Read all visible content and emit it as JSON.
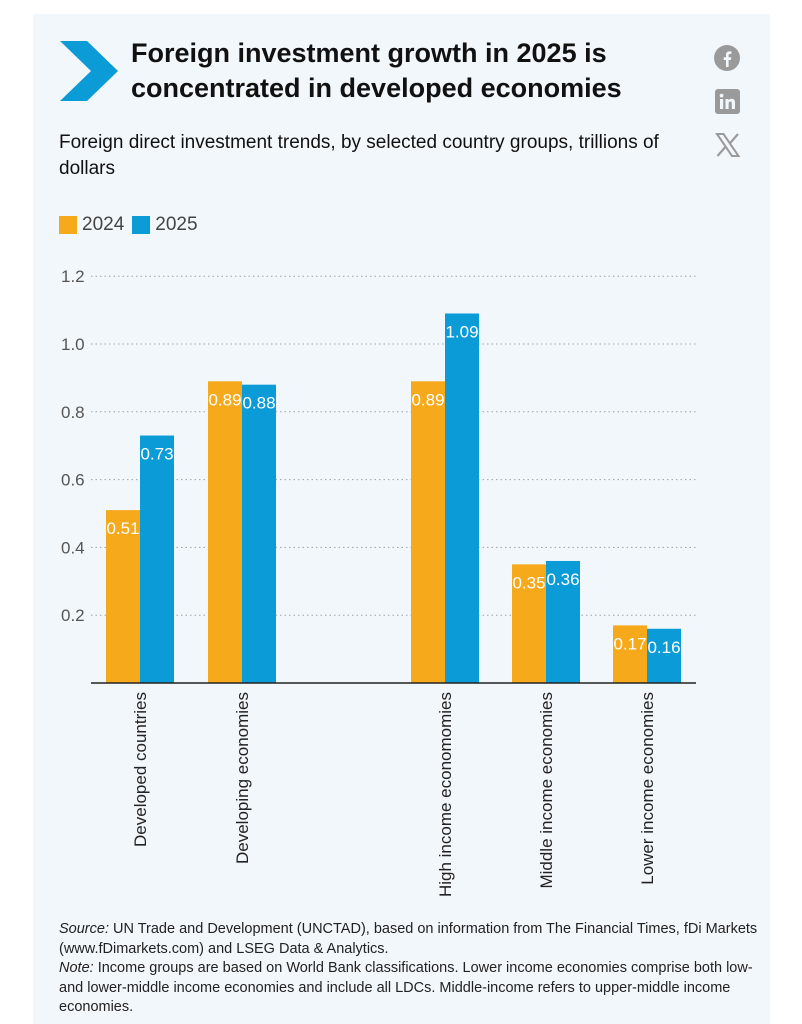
{
  "header": {
    "title": "Foreign investment growth in 2025 is concentrated in developed economies",
    "social_icons": [
      "facebook-icon",
      "linkedin-icon",
      "x-icon"
    ]
  },
  "colors": {
    "series_2024": "#f6a91b",
    "series_2025": "#0b9bd6",
    "chevron": "#0b9bd6",
    "social": "#9a9a9a"
  },
  "notes": {
    "source_label": "Source:",
    "source_text": "UN Trade and Development (UNCTAD), based on information from The Financial Times, fDi Markets (www.fDimarkets.com) and LSEG Data & Analytics.",
    "note_label": "Note:",
    "note_text": "Income groups are based on World Bank classifications. Lower income economies comprise both low- and lower-middle income economies and include all LDCs. Middle-income refers to upper-middle income economies."
  },
  "chart_data": {
    "type": "bar",
    "title": "Foreign direct investment trends, by selected country groups, trillions of dollars",
    "xlabel": "",
    "ylabel": "",
    "ylim": [
      0,
      1.2
    ],
    "yticks": [
      "0.2",
      "0.4",
      "0.6",
      "0.8",
      "1.0",
      "1.2"
    ],
    "grid": true,
    "legend_position": "top-left",
    "categories": [
      "Developed countries",
      "Developing economies",
      "High income economomies",
      "Middle income economies",
      "Lower income economies"
    ],
    "series": [
      {
        "name": "2024",
        "values": [
          0.51,
          0.89,
          0.89,
          0.35,
          0.17
        ],
        "labels": [
          "0.51",
          "0.89",
          "0.89",
          "0.35",
          "0.17"
        ]
      },
      {
        "name": "2025",
        "values": [
          0.73,
          0.88,
          1.09,
          0.36,
          0.16
        ],
        "labels": [
          "0.73",
          "0.88",
          "1.09",
          "0.36",
          "0.16"
        ]
      }
    ]
  }
}
